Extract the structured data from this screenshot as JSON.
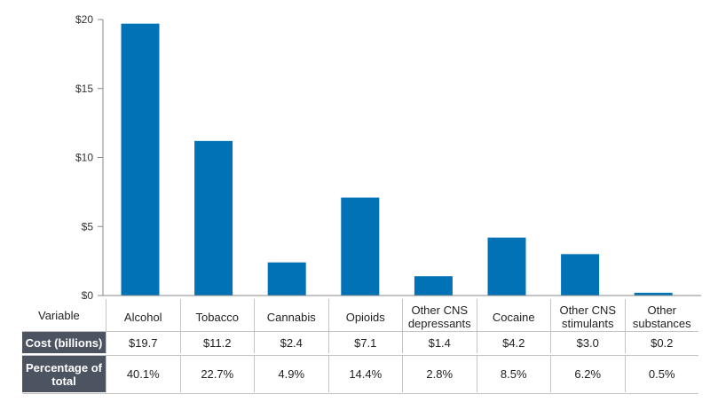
{
  "chart_data": {
    "type": "bar",
    "categories": [
      "Alcohol",
      "Tobacco",
      "Cannabis",
      "Opioids",
      "Other CNS depressants",
      "Cocaine",
      "Other CNS stimulants",
      "Other substances"
    ],
    "values": [
      19.7,
      11.2,
      2.4,
      7.1,
      1.4,
      4.2,
      3.0,
      0.2
    ],
    "ylim": [
      0,
      20
    ],
    "yticks": [
      "$0",
      "$5",
      "$10",
      "$15",
      "$20"
    ],
    "ytick_values": [
      0,
      5,
      10,
      15,
      20
    ],
    "bar_color": "#0072b5",
    "grid": false
  },
  "table": {
    "header_label": "Variable",
    "columns": [
      "Alcohol",
      "Tobacco",
      "Cannabis",
      "Opioids",
      "Other CNS depressants",
      "Cocaine",
      "Other CNS stimulants",
      "Other substances"
    ],
    "cost_label": "Cost (billions)",
    "cost_values": [
      "$19.7",
      "$11.2",
      "$2.4",
      "$7.1",
      "$1.4",
      "$4.2",
      "$3.0",
      "$0.2"
    ],
    "percent_label": "Percentage of total",
    "percent_values": [
      "40.1%",
      "22.7%",
      "4.9%",
      "14.4%",
      "2.8%",
      "8.5%",
      "6.2%",
      "0.5%"
    ]
  }
}
